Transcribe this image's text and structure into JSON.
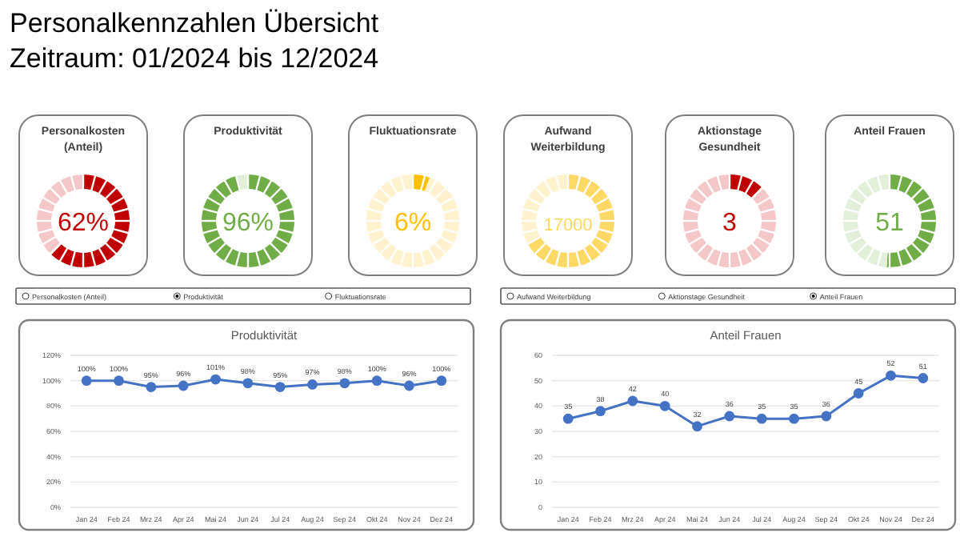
{
  "chart_data": [
    {
      "type": "other",
      "title": "Personalkennzahlen Übersicht",
      "subtitle": "Zeitraum: 01/2024 bis 12/2024"
    },
    {
      "type": "donut",
      "title": "Personalkosten (Anteil)",
      "categories": [
        null,
        null
      ],
      "values": [
        62,
        38
      ],
      "colors": [
        "#c00000",
        "#f4c7c9"
      ],
      "annotations": [
        "62%"
      ]
    },
    {
      "type": "donut",
      "title": "Produktivität",
      "categories": [
        null,
        null
      ],
      "values": [
        96,
        4
      ],
      "colors": [
        "#70ad47",
        "#e2efd9"
      ],
      "annotations": [
        "96%"
      ]
    },
    {
      "type": "donut",
      "title": "Fluktuationsrate",
      "categories": [
        null,
        null
      ],
      "values": [
        6,
        94
      ],
      "colors": [
        "#ffc000",
        "#fff2cc"
      ],
      "annotations": [
        "6%"
      ]
    },
    {
      "type": "donut",
      "title": "Aufwand Weiterbildung",
      "categories": [
        null,
        null
      ],
      "values": [
        67,
        33
      ],
      "colors": [
        "#ffd966",
        "#fff2cc"
      ],
      "annotations": [
        "17000"
      ]
    },
    {
      "type": "donut",
      "title": "Aktionstage Gesundheit",
      "categories": [
        null,
        null
      ],
      "values": [
        12,
        88
      ],
      "colors": [
        "#c00000",
        "#f4c7c9"
      ],
      "annotations": [
        "3"
      ]
    },
    {
      "type": "donut",
      "title": "Anteil Frauen",
      "categories": [
        null,
        null
      ],
      "values": [
        51,
        49
      ],
      "colors": [
        "#70ad47",
        "#e2efd9"
      ],
      "annotations": [
        "51"
      ]
    },
    {
      "type": "other",
      "annotations": [
        "Personalkosten (Anteil)",
        "Produktivität",
        "Fluktuationsrate",
        "Aufwand Weiterbildung",
        "Aktionstage Gesundheit",
        "Anteil Frauen"
      ]
    },
    {
      "type": "line",
      "title": "Produktivität",
      "categories": [
        "Jan 24",
        "Feb 24",
        "Mrz 24",
        "Apr 24",
        "Mai 24",
        "Jun 24",
        "Jul 24",
        "Aug 24",
        "Sep 24",
        "Okt 24",
        "Nov 24",
        "Dez 24"
      ],
      "series": [
        {
          "color": "#4472c4",
          "values": [
            100,
            100,
            95,
            96,
            101,
            98,
            95,
            97,
            98,
            100,
            96,
            100
          ],
          "value_labels": [
            "100%",
            "100%",
            "95%",
            "96%",
            "101%",
            "98%",
            "95%",
            "97%",
            "98%",
            "100%",
            "96%",
            "100%"
          ]
        }
      ],
      "ylim": [
        0,
        120
      ],
      "yticks": [
        {
          "value": 0,
          "label": "0%"
        },
        {
          "value": 20,
          "label": "20%"
        },
        {
          "value": 40,
          "label": "40%"
        },
        {
          "value": 60,
          "label": "60%"
        },
        {
          "value": 80,
          "label": "80%"
        },
        {
          "value": 100,
          "label": "100%"
        },
        {
          "value": 120,
          "label": "120%"
        }
      ],
      "grid": "y",
      "marker": "circle"
    },
    {
      "type": "line",
      "title": "Anteil Frauen",
      "categories": [
        "Jan 24",
        "Feb 24",
        "Mrz 24",
        "Apr 24",
        "Mai 24",
        "Jun 24",
        "Jul 24",
        "Aug 24",
        "Sep 24",
        "Okt 24",
        "Nov 24",
        "Dez 24"
      ],
      "series": [
        {
          "color": "#4472c4",
          "values": [
            35,
            38,
            42,
            40,
            32,
            36,
            35,
            35,
            36,
            45,
            52,
            51
          ]
        }
      ],
      "ylim": [
        0,
        60
      ],
      "yticks": [
        0,
        10,
        20,
        30,
        40,
        50,
        60
      ],
      "grid": "y",
      "marker": "circle",
      "data_labels": true
    }
  ]
}
